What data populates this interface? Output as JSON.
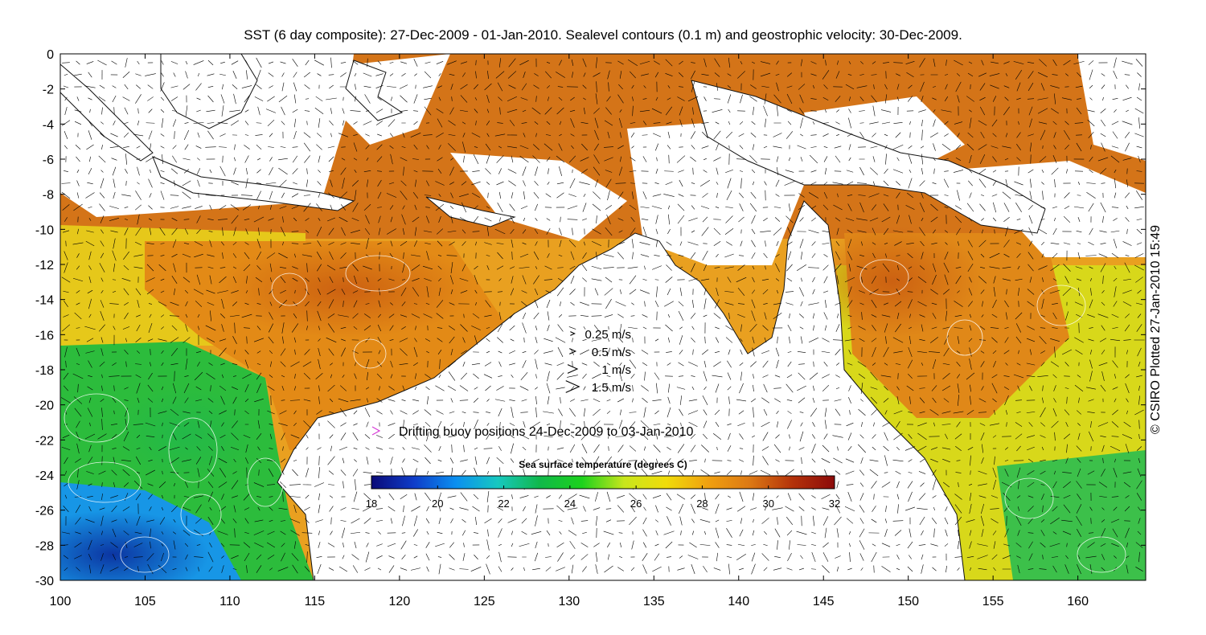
{
  "title": "SST (6 day composite): 27-Dec-2009 - 01-Jan-2010. Sealevel contours (0.1 m) and geostrophic velocity: 30-Dec-2009.",
  "credit": "© CSIRO Plotted 27-Jan-2010 15:49",
  "axes": {
    "x_ticks": [
      "100",
      "105",
      "110",
      "115",
      "120",
      "125",
      "130",
      "135",
      "140",
      "145",
      "150",
      "155",
      "160"
    ],
    "y_ticks": [
      "0",
      "-2",
      "-4",
      "-6",
      "-8",
      "-10",
      "-12",
      "-14",
      "-16",
      "-18",
      "-20",
      "-22",
      "-24",
      "-26",
      "-28",
      "-30"
    ],
    "lon_range": [
      100,
      164
    ],
    "lat_range": [
      -30,
      0
    ]
  },
  "velocity_key": {
    "entries": [
      {
        "label": "0.25 m/s",
        "speed": 0.25
      },
      {
        "label": "0.5 m/s",
        "speed": 0.5
      },
      {
        "label": "1 m/s",
        "speed": 1
      },
      {
        "label": "1.5 m/s",
        "speed": 1.5
      }
    ]
  },
  "buoy_legend": {
    "label": "Drifting buoy positions 24-Dec-2009 to 03-Jan-2010",
    "color": "#d63cd6"
  },
  "colorbar": {
    "title": "Sea surface temperature (degrees C)",
    "min": 18,
    "max": 32,
    "ticks": [
      "18",
      "20",
      "22",
      "24",
      "26",
      "28",
      "30",
      "32"
    ],
    "colors": [
      "#0a0a78",
      "#0f3cc8",
      "#0b8ff0",
      "#17c8c0",
      "#10b84a",
      "#1cd21c",
      "#c8e61c",
      "#f0dc0a",
      "#f0a010",
      "#dc7814",
      "#b4320a",
      "#8c0a0a"
    ]
  }
}
